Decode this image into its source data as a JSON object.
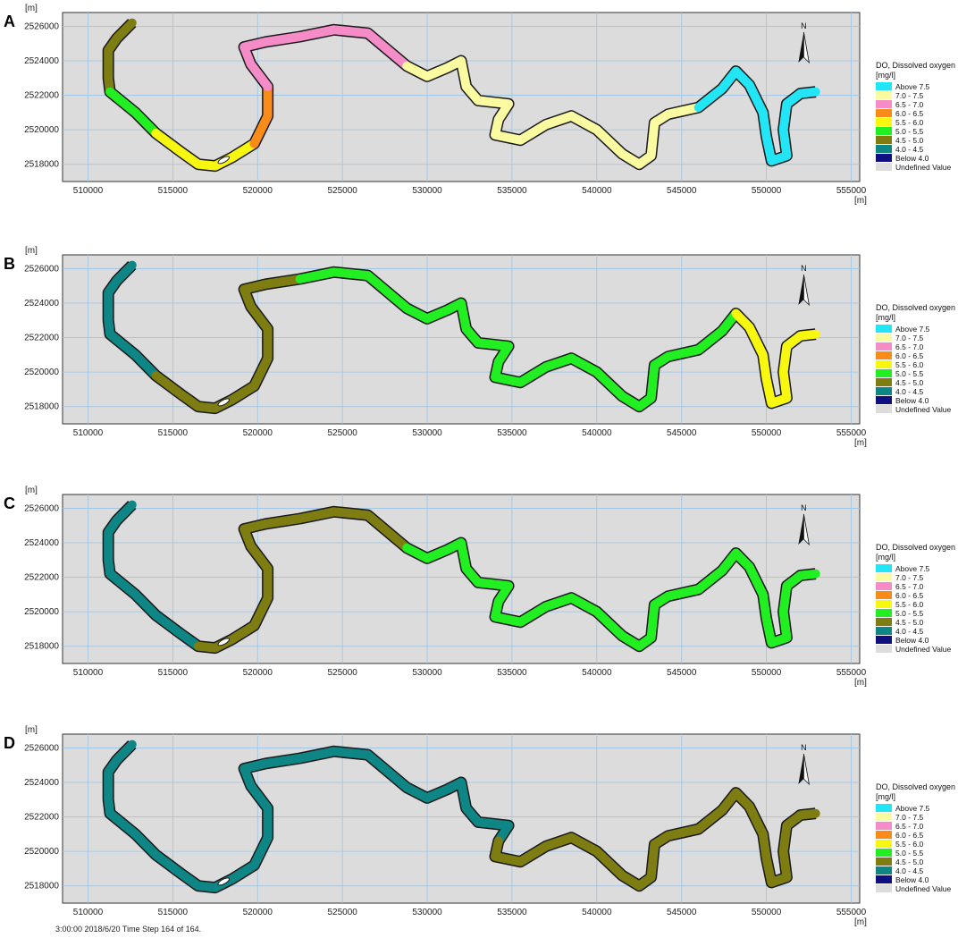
{
  "legend": {
    "title": "DO, Dissolved oxygen",
    "unit": "[mg/l]",
    "items": [
      {
        "label": "Above 7.5",
        "color": "#22e5f5"
      },
      {
        "label": "7.0 - 7.5",
        "color": "#fafaa0"
      },
      {
        "label": "6.5 - 7.0",
        "color": "#f58cc8"
      },
      {
        "label": "6.0 - 6.5",
        "color": "#f98c19"
      },
      {
        "label": "5.5 - 6.0",
        "color": "#f7f70f"
      },
      {
        "label": "5.0 - 5.5",
        "color": "#22ef22"
      },
      {
        "label": "4.5 - 5.0",
        "color": "#7d7d12"
      },
      {
        "label": "4.0 - 4.5",
        "color": "#0f8686"
      },
      {
        "label": "Below 4.0",
        "color": "#0f0f82"
      },
      {
        "label": "Undefined Value",
        "color": "#dcdcdc"
      }
    ]
  },
  "axes": {
    "x_ticks": [
      "510000",
      "515000",
      "520000",
      "525000",
      "530000",
      "535000",
      "540000",
      "545000",
      "550000",
      "555000"
    ],
    "y_ticks": [
      "2518000",
      "2520000",
      "2522000",
      "2524000",
      "2526000"
    ],
    "unit": "[m]",
    "x_range": [
      508500,
      555500
    ],
    "y_range": [
      2517000,
      2526800
    ]
  },
  "north_label": "N",
  "river_path": [
    [
      512600,
      2526200
    ],
    [
      511700,
      2525300
    ],
    [
      511200,
      2524600
    ],
    [
      511200,
      2523000
    ],
    [
      511300,
      2522200
    ],
    [
      512800,
      2521000
    ],
    [
      514000,
      2519800
    ],
    [
      515500,
      2518700
    ],
    [
      516500,
      2518000
    ],
    [
      517500,
      2517900
    ],
    [
      518500,
      2518400
    ],
    [
      519800,
      2519200
    ],
    [
      520600,
      2520800
    ],
    [
      520600,
      2522500
    ],
    [
      519600,
      2523800
    ],
    [
      519200,
      2524800
    ],
    [
      520500,
      2525100
    ],
    [
      522500,
      2525400
    ],
    [
      524500,
      2525800
    ],
    [
      526500,
      2525600
    ],
    [
      528800,
      2523700
    ],
    [
      530000,
      2523100
    ],
    [
      531200,
      2523600
    ],
    [
      532000,
      2524000
    ],
    [
      532300,
      2522500
    ],
    [
      533000,
      2521700
    ],
    [
      534800,
      2521500
    ],
    [
      534200,
      2520600
    ],
    [
      534000,
      2519700
    ],
    [
      535500,
      2519400
    ],
    [
      537000,
      2520300
    ],
    [
      538500,
      2520800
    ],
    [
      540000,
      2520000
    ],
    [
      541500,
      2518600
    ],
    [
      542500,
      2518000
    ],
    [
      543200,
      2518500
    ],
    [
      543400,
      2520400
    ],
    [
      544200,
      2520900
    ],
    [
      546000,
      2521300
    ],
    [
      547400,
      2522400
    ],
    [
      548200,
      2523400
    ],
    [
      549000,
      2522600
    ],
    [
      549800,
      2521000
    ],
    [
      550000,
      2519600
    ],
    [
      550300,
      2518200
    ],
    [
      551200,
      2518500
    ],
    [
      551000,
      2520000
    ],
    [
      551200,
      2521500
    ],
    [
      552000,
      2522100
    ],
    [
      552900,
      2522200
    ]
  ],
  "panels": [
    {
      "label": "A",
      "north_arrow_x": 552200,
      "segments": [
        {
          "from": 0,
          "to": 4,
          "color": "#7d7d12"
        },
        {
          "from": 4,
          "to": 6,
          "color": "#22ef22"
        },
        {
          "from": 6,
          "to": 11,
          "color": "#f7f70f"
        },
        {
          "from": 11,
          "to": 13,
          "color": "#f98c19"
        },
        {
          "from": 13,
          "to": 20,
          "color": "#f58cc8"
        },
        {
          "from": 20,
          "to": 38,
          "color": "#fafaa0"
        },
        {
          "from": 38,
          "to": 49,
          "color": "#22e5f5"
        }
      ]
    },
    {
      "label": "B",
      "north_arrow_x": 552200,
      "segments": [
        {
          "from": 0,
          "to": 6,
          "color": "#0f8686"
        },
        {
          "from": 6,
          "to": 17,
          "color": "#7d7d12"
        },
        {
          "from": 17,
          "to": 40,
          "color": "#22ef22"
        },
        {
          "from": 40,
          "to": 49,
          "color": "#f7f70f"
        }
      ]
    },
    {
      "label": "C",
      "north_arrow_x": 552200,
      "segments": [
        {
          "from": 0,
          "to": 8,
          "color": "#0f8686"
        },
        {
          "from": 8,
          "to": 20,
          "color": "#7d7d12"
        },
        {
          "from": 20,
          "to": 49,
          "color": "#22ef22"
        }
      ]
    },
    {
      "label": "D",
      "north_arrow_x": 552200,
      "segments": [
        {
          "from": 0,
          "to": 27,
          "color": "#0f8686"
        },
        {
          "from": 27,
          "to": 49,
          "color": "#7d7d12"
        }
      ]
    }
  ],
  "footer_text": "3:00:00 2018/6/20  Time Step 164 of 164."
}
